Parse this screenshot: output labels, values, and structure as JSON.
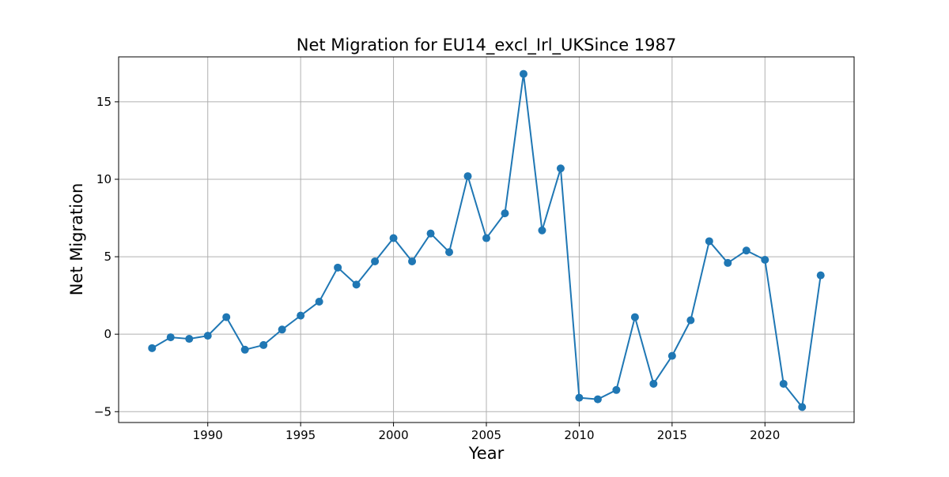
{
  "chart_data": {
    "type": "line",
    "title": "Net Migration for EU14_excl_Irl_UKSince 1987",
    "xlabel": "Year",
    "ylabel": "Net Migration",
    "xlim": [
      1985.2,
      2024.8
    ],
    "ylim": [
      -5.7,
      17.9
    ],
    "xticks": [
      1990,
      1995,
      2000,
      2005,
      2010,
      2015,
      2020
    ],
    "yticks": [
      -5,
      0,
      5,
      10,
      15
    ],
    "ytick_labels": [
      "−5",
      "0",
      "5",
      "10",
      "15"
    ],
    "grid": true,
    "marker": "circle",
    "series": [
      {
        "color": "#1f77b4",
        "x": [
          1987,
          1988,
          1989,
          1990,
          1991,
          1992,
          1993,
          1994,
          1995,
          1996,
          1997,
          1998,
          1999,
          2000,
          2001,
          2002,
          2003,
          2004,
          2005,
          2006,
          2007,
          2008,
          2009,
          2010,
          2011,
          2012,
          2013,
          2014,
          2015,
          2016,
          2017,
          2018,
          2019,
          2020,
          2021,
          2022,
          2023
        ],
        "y": [
          -0.9,
          -0.2,
          -0.3,
          -0.1,
          1.1,
          -1.0,
          -0.7,
          0.3,
          1.2,
          2.1,
          4.3,
          3.2,
          4.7,
          6.2,
          4.7,
          6.5,
          5.3,
          10.2,
          6.2,
          7.8,
          16.8,
          6.7,
          10.7,
          -4.1,
          -4.2,
          -3.6,
          1.1,
          -3.2,
          -1.4,
          0.9,
          6.0,
          4.6,
          5.4,
          4.8,
          -3.2,
          -4.7,
          3.8
        ]
      }
    ]
  }
}
